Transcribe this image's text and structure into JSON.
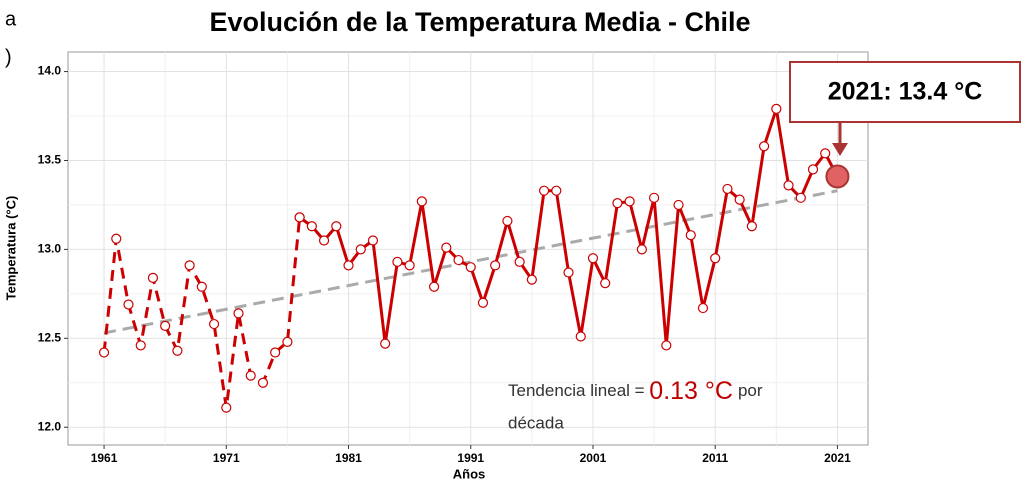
{
  "chart_data": {
    "type": "line",
    "panel_label": [
      "a",
      ")"
    ],
    "title": "Evolución de la Temperatura Media - Chile",
    "xlabel": "Años",
    "ylabel": "Temperatura (°C)",
    "xlim": [
      1958.05,
      2023.5
    ],
    "xticks": [
      1961,
      1971,
      1981,
      1991,
      2001,
      2011,
      2021
    ],
    "xminor": [
      1966,
      1976,
      1986,
      1996,
      2006,
      2016
    ],
    "ylim": [
      11.9,
      14.11
    ],
    "yticks": [
      {
        "value": 12,
        "label": "12.0"
      },
      12.5,
      {
        "value": 13,
        "label": "13.0"
      },
      13.5,
      {
        "value": 14,
        "label": "14.0"
      }
    ],
    "yminor": [
      12.25,
      12.75,
      13.25,
      13.75
    ],
    "grid": true,
    "series": [
      {
        "color": "#cc0000",
        "dashed": true,
        "x": [
          1961,
          1962,
          1963,
          1964,
          1965,
          1966,
          1967,
          1968,
          1969,
          1970,
          1971,
          1972,
          1973,
          1974,
          1975,
          1976,
          1977
        ],
        "values": [
          12.42,
          13.06,
          12.69,
          12.46,
          12.84,
          12.57,
          12.43,
          12.91,
          12.79,
          12.58,
          12.11,
          12.64,
          12.29,
          12.25,
          12.42,
          12.48,
          13.18
        ]
      },
      {
        "color": "#cc0000",
        "dashed": false,
        "x": [
          1977,
          1978,
          1979,
          1980,
          1981,
          1982,
          1983,
          1984,
          1985,
          1986,
          1987,
          1988,
          1989,
          1990,
          1991,
          1992,
          1993,
          1994,
          1995,
          1996,
          1997,
          1998,
          1999,
          2000,
          2001,
          2002,
          2003,
          2004,
          2005,
          2006,
          2007,
          2008,
          2009,
          2010,
          2011,
          2012,
          2013,
          2014,
          2015,
          2016,
          2017,
          2018,
          2019,
          2020,
          2021
        ],
        "values": [
          13.18,
          13.13,
          13.05,
          13.13,
          12.91,
          13.0,
          13.05,
          12.47,
          12.93,
          12.91,
          13.27,
          12.79,
          13.01,
          12.94,
          12.9,
          12.7,
          12.91,
          13.16,
          12.93,
          12.83,
          13.33,
          13.33,
          12.87,
          12.51,
          12.95,
          12.81,
          13.26,
          13.27,
          13.0,
          13.29,
          12.46,
          13.25,
          13.08,
          12.67,
          12.95,
          13.34,
          13.28,
          13.13,
          13.58,
          13.79,
          13.36,
          13.29,
          13.45,
          13.54,
          13.41
        ],
        "highlight_last": true
      }
    ],
    "trend": {
      "color": "#aaaaaa",
      "x": [
        1961,
        2021
      ],
      "values": [
        12.53,
        13.33
      ]
    },
    "callout": "2021: 13.4 °C",
    "trend_text": {
      "prefix": "Tendencia lineal = ",
      "value": "0.13 °C",
      "suffix": "por",
      "line2": "década"
    }
  }
}
